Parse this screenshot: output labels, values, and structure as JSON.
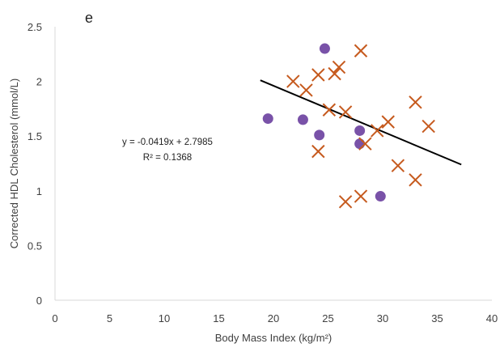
{
  "chart_data": {
    "type": "scatter",
    "panel_label": "e",
    "xlabel": "Body Mass Index (kg/m²)",
    "ylabel": "Corrected HDL Cholesterol (mmol/L)",
    "xlim": [
      0,
      40
    ],
    "ylim": [
      0,
      2.5
    ],
    "x_ticks": [
      "0",
      "5",
      "10",
      "15",
      "20",
      "25",
      "30",
      "35",
      "40"
    ],
    "y_ticks": [
      "0",
      "0.5",
      "1",
      "1.5",
      "2",
      "2.5"
    ],
    "grid": false,
    "legend": "none",
    "series": [
      {
        "marker": "circle",
        "color": "#7952a8",
        "points": [
          {
            "x": 24.7,
            "y": 2.3
          },
          {
            "x": 19.5,
            "y": 1.66
          },
          {
            "x": 22.7,
            "y": 1.65
          },
          {
            "x": 24.2,
            "y": 1.51
          },
          {
            "x": 27.9,
            "y": 1.55
          },
          {
            "x": 27.9,
            "y": 1.43
          },
          {
            "x": 29.8,
            "y": 0.95
          }
        ]
      },
      {
        "marker": "x",
        "color": "#c65a1e",
        "points": [
          {
            "x": 28.0,
            "y": 2.28
          },
          {
            "x": 26.0,
            "y": 2.13
          },
          {
            "x": 25.6,
            "y": 2.07
          },
          {
            "x": 24.1,
            "y": 2.06
          },
          {
            "x": 21.8,
            "y": 2.0
          },
          {
            "x": 23.0,
            "y": 1.92
          },
          {
            "x": 25.1,
            "y": 1.74
          },
          {
            "x": 26.6,
            "y": 1.72
          },
          {
            "x": 33.0,
            "y": 1.81
          },
          {
            "x": 30.5,
            "y": 1.63
          },
          {
            "x": 29.5,
            "y": 1.55
          },
          {
            "x": 34.2,
            "y": 1.59
          },
          {
            "x": 28.4,
            "y": 1.43
          },
          {
            "x": 24.1,
            "y": 1.36
          },
          {
            "x": 31.4,
            "y": 1.23
          },
          {
            "x": 33.0,
            "y": 1.1
          },
          {
            "x": 28.0,
            "y": 0.95
          },
          {
            "x": 26.6,
            "y": 0.9
          }
        ]
      }
    ],
    "trendline": {
      "type": "linear",
      "color": "#000000",
      "x_range": [
        18.8,
        37.2
      ],
      "slope": -0.0419,
      "intercept": 2.7985,
      "equation_label": "y = -0.0419x + 2.7985",
      "r2_label": "R² = 0.1368"
    }
  }
}
